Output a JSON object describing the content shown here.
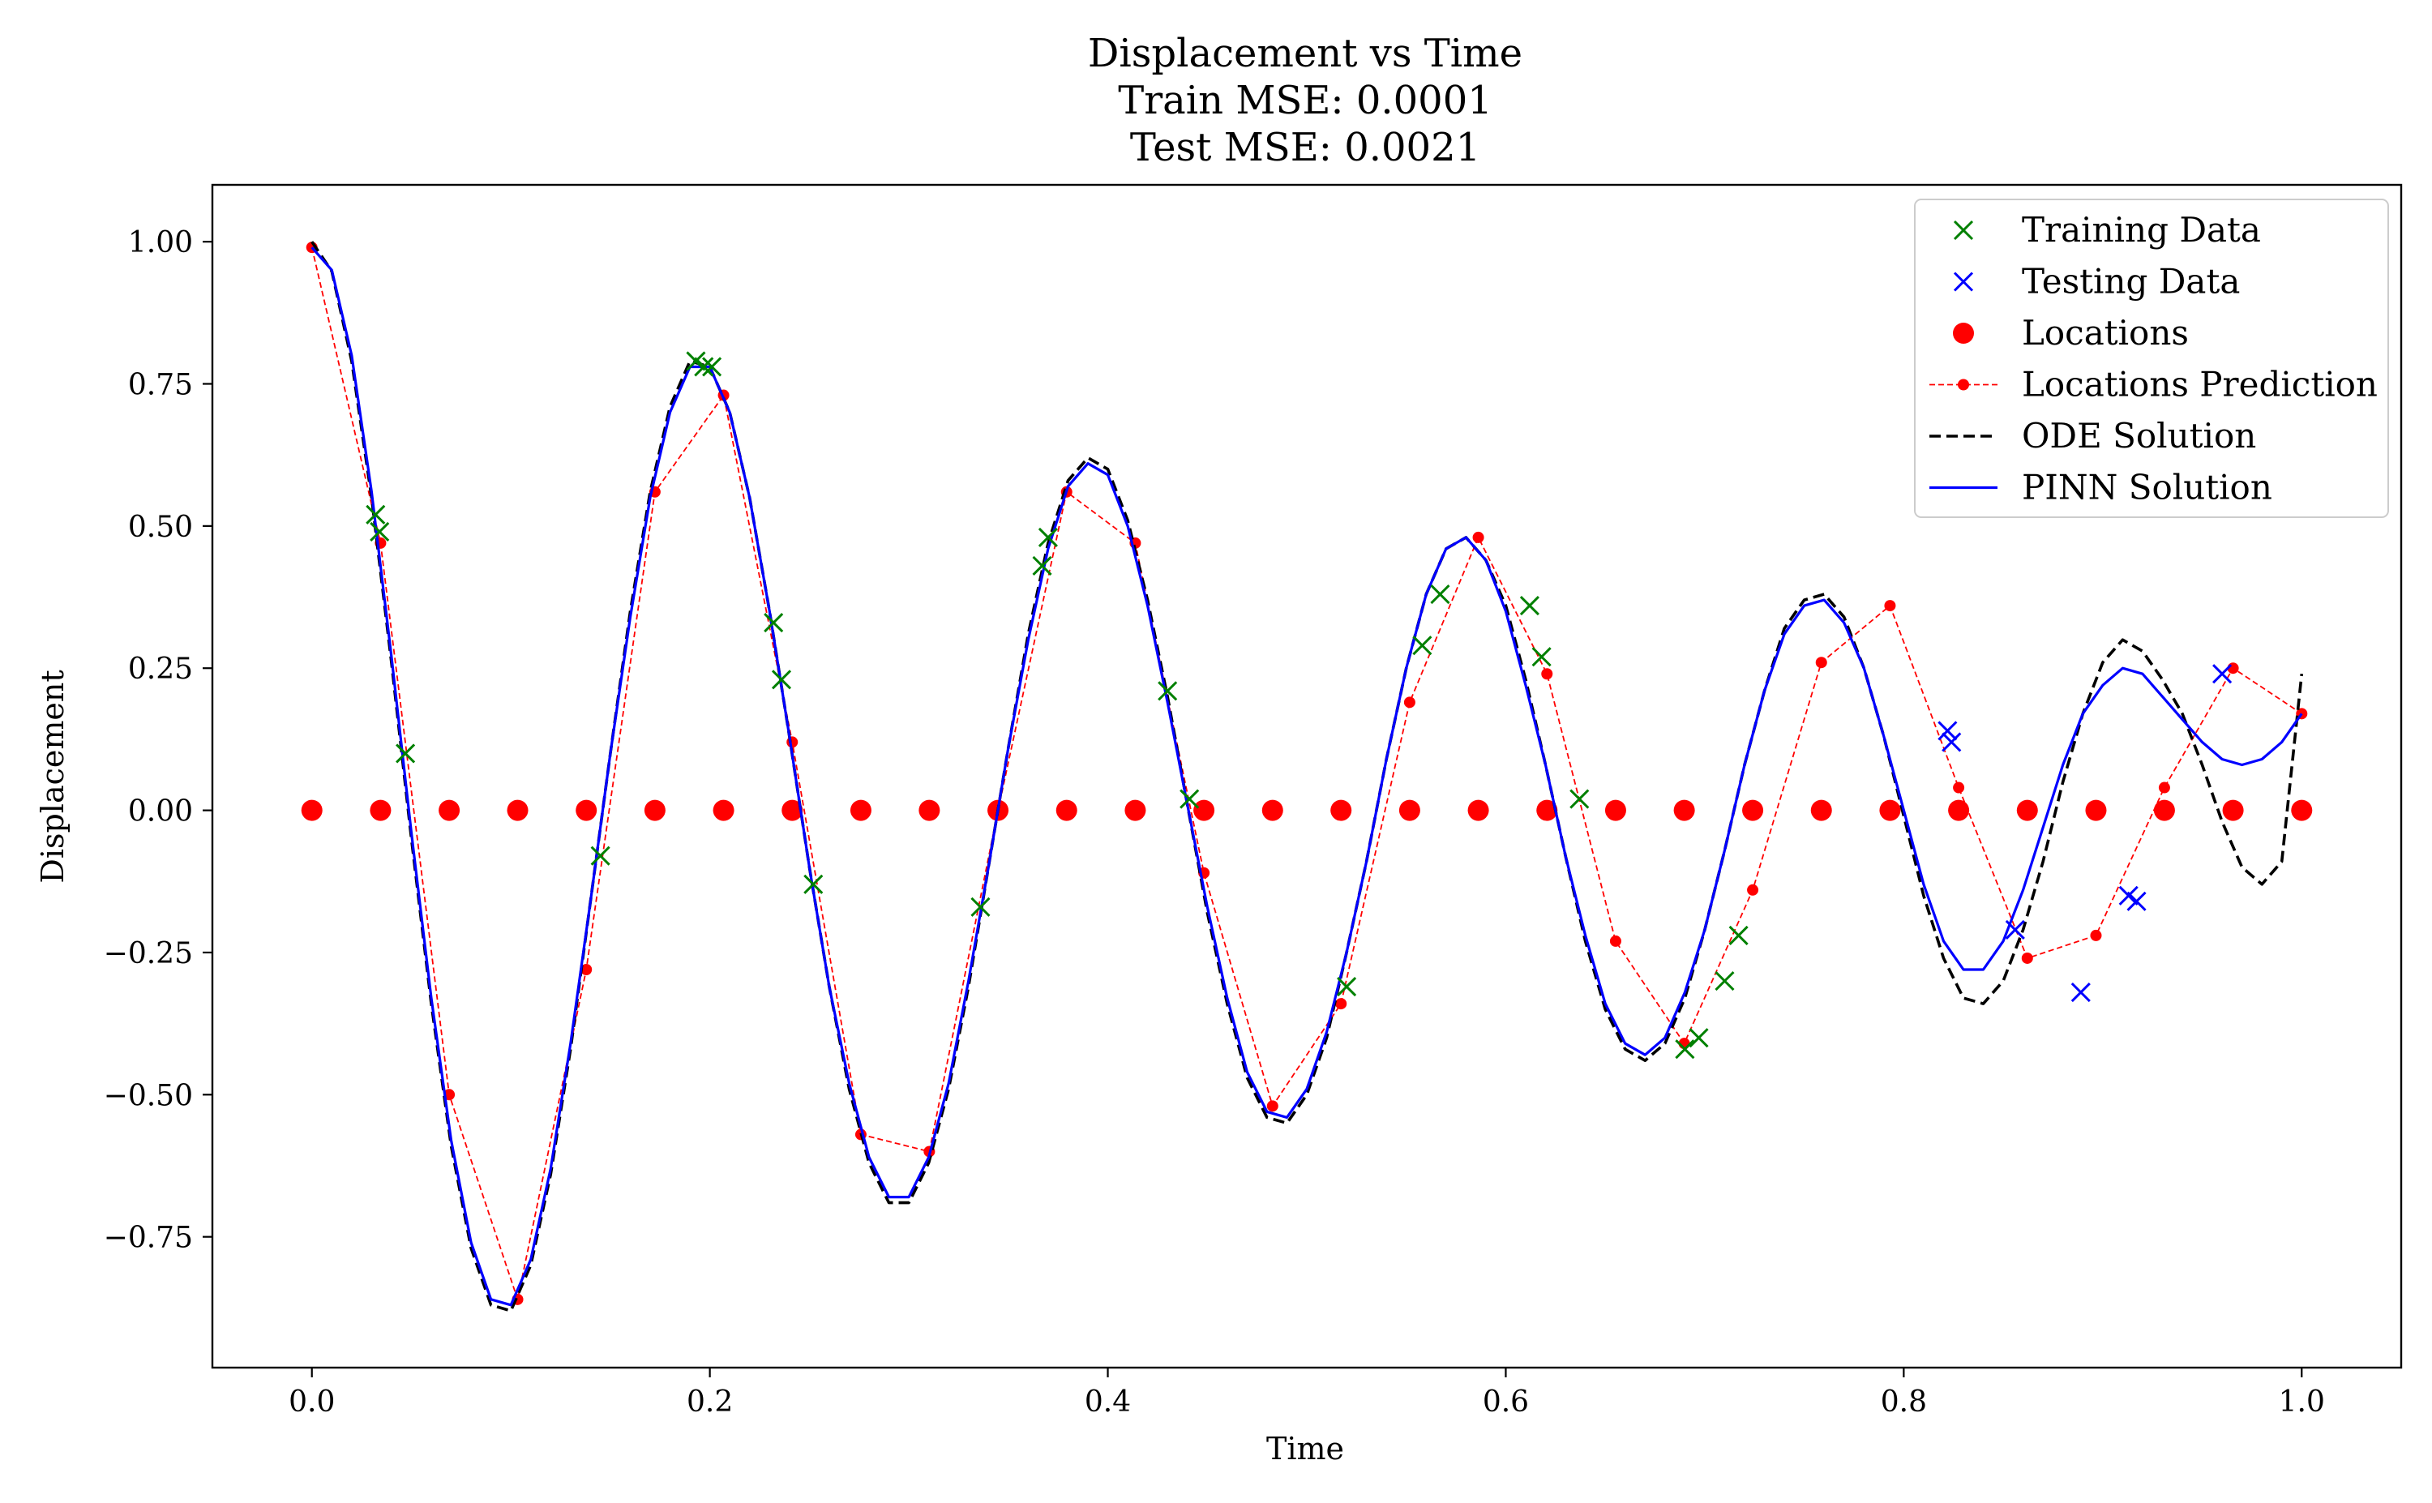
{
  "chart_data": {
    "type": "line",
    "title_lines": [
      "Displacement vs Time",
      "Train MSE: 0.0001",
      "Test MSE: 0.0021"
    ],
    "xlabel": "Time",
    "ylabel": "Displacement",
    "xlim": [
      -0.05,
      1.05
    ],
    "ylim": [
      -0.98,
      1.1
    ],
    "x_ticks": [
      0.0,
      0.2,
      0.4,
      0.6,
      0.8,
      1.0
    ],
    "x_tick_labels": [
      "0.0",
      "0.2",
      "0.4",
      "0.6",
      "0.8",
      "1.0"
    ],
    "y_ticks": [
      -0.75,
      -0.5,
      -0.25,
      0.0,
      0.25,
      0.5,
      0.75,
      1.0
    ],
    "y_tick_labels": [
      "−0.75",
      "−0.50",
      "−0.25",
      "0.00",
      "0.25",
      "0.50",
      "0.75",
      "1.00"
    ],
    "grid": false,
    "legend_position": "top-right",
    "legend": [
      {
        "label": "Training Data",
        "kind": "x-marker",
        "color": "#008000"
      },
      {
        "label": "Testing Data",
        "kind": "x-marker",
        "color": "#0000ff"
      },
      {
        "label": "Locations",
        "kind": "dot",
        "color": "#ff0000"
      },
      {
        "label": "Locations Prediction",
        "kind": "dashed-dot",
        "color": "#ff0000"
      },
      {
        "label": "ODE Solution",
        "kind": "dashed",
        "color": "#000000"
      },
      {
        "label": "PINN Solution",
        "kind": "solid",
        "color": "#0000ff"
      }
    ],
    "series": [
      {
        "name": "ODE Solution",
        "style": "dashed",
        "color": "#000000",
        "x": [
          0.0,
          0.01,
          0.02,
          0.03,
          0.04,
          0.05,
          0.06,
          0.07,
          0.08,
          0.09,
          0.1,
          0.11,
          0.12,
          0.13,
          0.14,
          0.15,
          0.16,
          0.17,
          0.18,
          0.19,
          0.2,
          0.21,
          0.22,
          0.23,
          0.24,
          0.25,
          0.26,
          0.27,
          0.28,
          0.29,
          0.3,
          0.31,
          0.32,
          0.33,
          0.34,
          0.35,
          0.36,
          0.37,
          0.38,
          0.39,
          0.4,
          0.41,
          0.42,
          0.43,
          0.44,
          0.45,
          0.46,
          0.47,
          0.48,
          0.49,
          0.5,
          0.51,
          0.52,
          0.53,
          0.54,
          0.55,
          0.56,
          0.57,
          0.58,
          0.59,
          0.6,
          0.61,
          0.62,
          0.63,
          0.64,
          0.65,
          0.66,
          0.67,
          0.68,
          0.69,
          0.7,
          0.71,
          0.72,
          0.73,
          0.74,
          0.75,
          0.76,
          0.77,
          0.78,
          0.79,
          0.8,
          0.81,
          0.82,
          0.83,
          0.84,
          0.85,
          0.86,
          0.87,
          0.88,
          0.89,
          0.9,
          0.91,
          0.92,
          0.93,
          0.94,
          0.95,
          0.96,
          0.97,
          0.98,
          0.99,
          1.0
        ],
        "y": [
          1.0,
          0.948,
          0.79,
          0.55,
          0.26,
          -0.05,
          -0.34,
          -0.59,
          -0.77,
          -0.87,
          -0.88,
          -0.8,
          -0.64,
          -0.42,
          -0.16,
          0.1,
          0.35,
          0.56,
          0.71,
          0.79,
          0.78,
          0.7,
          0.55,
          0.35,
          0.13,
          -0.1,
          -0.31,
          -0.49,
          -0.62,
          -0.69,
          -0.69,
          -0.62,
          -0.49,
          -0.31,
          -0.1,
          0.11,
          0.31,
          0.47,
          0.58,
          0.62,
          0.6,
          0.51,
          0.37,
          0.2,
          0.01,
          -0.18,
          -0.34,
          -0.47,
          -0.54,
          -0.55,
          -0.5,
          -0.4,
          -0.25,
          -0.09,
          0.09,
          0.25,
          0.38,
          0.46,
          0.48,
          0.44,
          0.36,
          0.23,
          0.08,
          -0.08,
          -0.23,
          -0.35,
          -0.42,
          -0.44,
          -0.41,
          -0.33,
          -0.21,
          -0.07,
          0.08,
          0.21,
          0.32,
          0.37,
          0.38,
          0.34,
          0.25,
          0.13,
          -0.01,
          -0.15,
          -0.26,
          -0.33,
          -0.34,
          -0.3,
          -0.21,
          -0.09,
          0.05,
          0.17,
          0.26,
          0.3,
          0.28,
          0.23,
          0.17,
          0.08,
          -0.02,
          -0.1,
          -0.13,
          -0.09,
          0.24
        ]
      },
      {
        "name": "PINN Solution",
        "style": "solid",
        "color": "#0000ff",
        "x": [
          0.0,
          0.01,
          0.02,
          0.03,
          0.04,
          0.05,
          0.06,
          0.07,
          0.08,
          0.09,
          0.1,
          0.11,
          0.12,
          0.13,
          0.14,
          0.15,
          0.16,
          0.17,
          0.18,
          0.19,
          0.2,
          0.21,
          0.22,
          0.23,
          0.24,
          0.25,
          0.26,
          0.27,
          0.28,
          0.29,
          0.3,
          0.31,
          0.32,
          0.33,
          0.34,
          0.35,
          0.36,
          0.37,
          0.38,
          0.39,
          0.4,
          0.41,
          0.42,
          0.43,
          0.44,
          0.45,
          0.46,
          0.47,
          0.48,
          0.49,
          0.5,
          0.51,
          0.52,
          0.53,
          0.54,
          0.55,
          0.56,
          0.57,
          0.58,
          0.59,
          0.6,
          0.61,
          0.62,
          0.63,
          0.64,
          0.65,
          0.66,
          0.67,
          0.68,
          0.69,
          0.7,
          0.71,
          0.72,
          0.73,
          0.74,
          0.75,
          0.76,
          0.77,
          0.78,
          0.79,
          0.8,
          0.81,
          0.82,
          0.83,
          0.84,
          0.85,
          0.86,
          0.87,
          0.88,
          0.89,
          0.9,
          0.91,
          0.92,
          0.93,
          0.94,
          0.95,
          0.96,
          0.97,
          0.98,
          0.99,
          1.0
        ],
        "y": [
          0.99,
          0.95,
          0.8,
          0.56,
          0.27,
          -0.04,
          -0.33,
          -0.58,
          -0.76,
          -0.86,
          -0.87,
          -0.79,
          -0.63,
          -0.41,
          -0.16,
          0.1,
          0.34,
          0.55,
          0.7,
          0.78,
          0.78,
          0.7,
          0.55,
          0.35,
          0.13,
          -0.1,
          -0.31,
          -0.48,
          -0.61,
          -0.68,
          -0.68,
          -0.61,
          -0.48,
          -0.3,
          -0.1,
          0.11,
          0.3,
          0.46,
          0.57,
          0.61,
          0.59,
          0.5,
          0.36,
          0.19,
          0.01,
          -0.17,
          -0.33,
          -0.46,
          -0.53,
          -0.54,
          -0.49,
          -0.39,
          -0.25,
          -0.09,
          0.09,
          0.25,
          0.38,
          0.46,
          0.48,
          0.44,
          0.35,
          0.22,
          0.08,
          -0.08,
          -0.22,
          -0.34,
          -0.41,
          -0.43,
          -0.4,
          -0.32,
          -0.21,
          -0.07,
          0.08,
          0.21,
          0.31,
          0.36,
          0.37,
          0.33,
          0.25,
          0.13,
          0.0,
          -0.13,
          -0.23,
          -0.28,
          -0.28,
          -0.23,
          -0.14,
          -0.03,
          0.08,
          0.17,
          0.22,
          0.25,
          0.24,
          0.2,
          0.16,
          0.12,
          0.09,
          0.08,
          0.09,
          0.12,
          0.17
        ]
      },
      {
        "name": "Locations Prediction",
        "style": "dashed-dot",
        "color": "#ff0000",
        "x": [
          0.0,
          0.0345,
          0.069,
          0.1034,
          0.1379,
          0.1724,
          0.2069,
          0.2414,
          0.2759,
          0.3103,
          0.3448,
          0.3793,
          0.4138,
          0.4483,
          0.4828,
          0.5172,
          0.5517,
          0.5862,
          0.6207,
          0.6552,
          0.6897,
          0.7241,
          0.7586,
          0.7931,
          0.8276,
          0.8621,
          0.8966,
          0.931,
          0.9655,
          1.0
        ],
        "y": [
          0.99,
          0.47,
          -0.5,
          -0.86,
          -0.28,
          0.56,
          0.73,
          0.12,
          -0.57,
          -0.6,
          0.0,
          0.56,
          0.47,
          -0.11,
          -0.52,
          -0.34,
          0.19,
          0.48,
          0.24,
          -0.23,
          -0.41,
          -0.14,
          0.26,
          0.36,
          0.04,
          -0.26,
          -0.22,
          0.04,
          0.25,
          0.17
        ]
      },
      {
        "name": "Training Data",
        "style": "x-marker",
        "color": "#008000",
        "x": [
          0.032,
          0.034,
          0.047,
          0.145,
          0.193,
          0.197,
          0.201,
          0.232,
          0.236,
          0.252,
          0.336,
          0.367,
          0.37,
          0.43,
          0.441,
          0.52,
          0.558,
          0.567,
          0.612,
          0.618,
          0.637,
          0.69,
          0.697,
          0.71,
          0.717
        ],
        "y": [
          0.52,
          0.49,
          0.1,
          -0.08,
          0.79,
          0.78,
          0.78,
          0.33,
          0.23,
          -0.13,
          -0.17,
          0.43,
          0.48,
          0.21,
          0.02,
          -0.31,
          0.29,
          0.38,
          0.36,
          0.27,
          0.02,
          -0.42,
          -0.4,
          -0.3,
          -0.22
        ]
      },
      {
        "name": "Testing Data",
        "style": "x-marker",
        "color": "#0000ff",
        "x": [
          0.822,
          0.824,
          0.856,
          0.889,
          0.913,
          0.917,
          0.96
        ],
        "y": [
          0.14,
          0.12,
          -0.21,
          -0.32,
          -0.15,
          -0.16,
          0.24
        ]
      },
      {
        "name": "Locations",
        "style": "dot",
        "color": "#ff0000",
        "x": [
          0.0,
          0.0345,
          0.069,
          0.1034,
          0.1379,
          0.1724,
          0.2069,
          0.2414,
          0.2759,
          0.3103,
          0.3448,
          0.3793,
          0.4138,
          0.4483,
          0.4828,
          0.5172,
          0.5517,
          0.5862,
          0.6207,
          0.6552,
          0.6897,
          0.7241,
          0.7586,
          0.7931,
          0.8276,
          0.8621,
          0.8966,
          0.931,
          0.9655,
          1.0
        ],
        "y": [
          0,
          0,
          0,
          0,
          0,
          0,
          0,
          0,
          0,
          0,
          0,
          0,
          0,
          0,
          0,
          0,
          0,
          0,
          0,
          0,
          0,
          0,
          0,
          0,
          0,
          0,
          0,
          0,
          0,
          0
        ]
      }
    ]
  }
}
